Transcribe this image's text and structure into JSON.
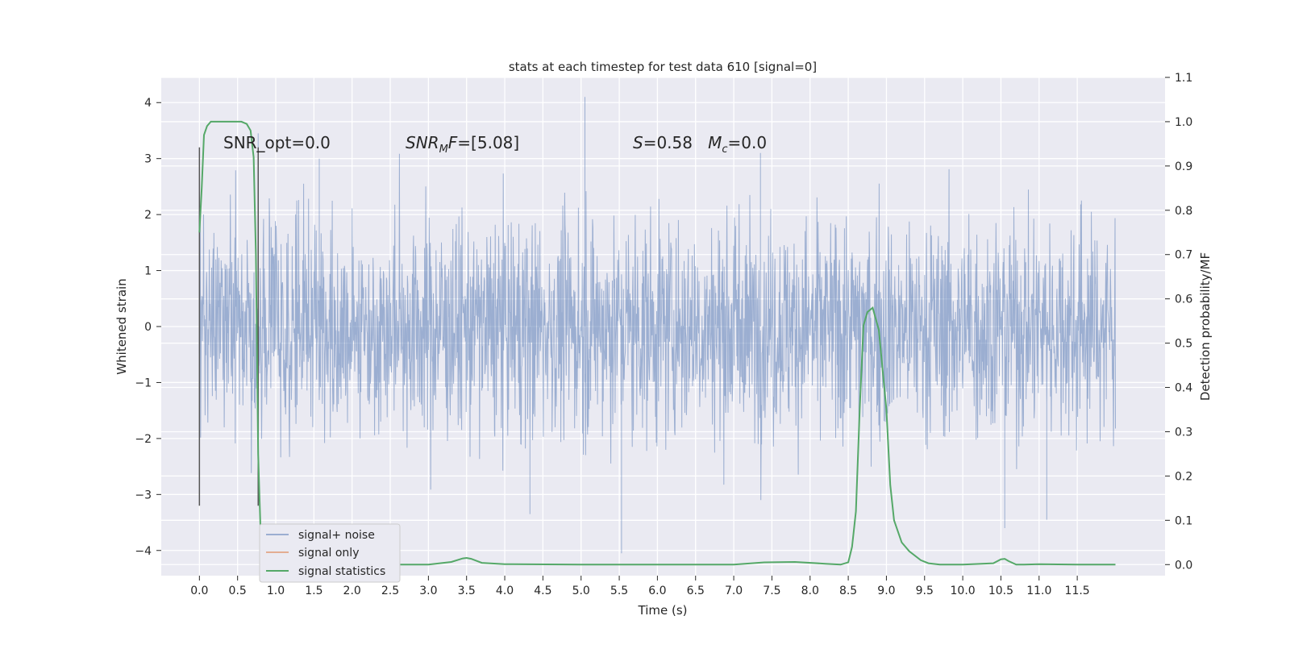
{
  "chart_data": {
    "type": "line",
    "title": "stats at each timestep for test data 610 [signal=0]",
    "xlabel": "Time (s)",
    "ylabel_left": "Whitened strain",
    "ylabel_right": "Detection probability/MF",
    "xlim": [
      -0.5,
      12.65
    ],
    "ylim_left": [
      -4.45,
      4.45
    ],
    "ylim_right": [
      -0.025,
      1.1
    ],
    "x_ticks": [
      0.0,
      0.5,
      1.0,
      1.5,
      2.0,
      2.5,
      3.0,
      3.5,
      4.0,
      4.5,
      5.0,
      5.5,
      6.0,
      6.5,
      7.0,
      7.5,
      8.0,
      8.5,
      9.0,
      9.5,
      10.0,
      10.5,
      11.0,
      11.5
    ],
    "x_tick_labels": [
      "0.0",
      "0.5",
      "1.0",
      "1.5",
      "2.0",
      "2.5",
      "3.0",
      "3.5",
      "4.0",
      "4.5",
      "5.0",
      "5.5",
      "6.0",
      "6.5",
      "7.0",
      "7.5",
      "8.0",
      "8.5",
      "9.0",
      "9.5",
      "10.0",
      "10.5",
      "11.0",
      "11.5"
    ],
    "y_left_ticks": [
      4,
      3,
      2,
      1,
      0,
      -1,
      -2,
      -3,
      -4
    ],
    "y_left_tick_labels": [
      "4",
      "3",
      "2",
      "1",
      "0",
      "−1",
      "−2",
      "−3",
      "−4"
    ],
    "y_right_ticks": [
      1.1,
      1.0,
      0.9,
      0.8,
      0.7,
      0.6,
      0.5,
      0.4,
      0.3,
      0.2,
      0.1,
      0.0
    ],
    "y_right_tick_labels": [
      "1.1",
      "1.0",
      "0.9",
      "0.8",
      "0.7",
      "0.6",
      "0.5",
      "0.4",
      "0.3",
      "0.2",
      "0.1",
      "0.0"
    ],
    "grid": true,
    "legend_position": "lower-left",
    "series": [
      {
        "name": "signal+ noise",
        "axis": "left",
        "color": "#4c72b0",
        "x_range": [
          0.0,
          12.0
        ],
        "typical_amplitude": 1.3,
        "spikes": [
          {
            "x": 5.05,
            "y": 4.1
          },
          {
            "x": 5.53,
            "y": -4.05
          },
          {
            "x": 10.55,
            "y": -3.6
          },
          {
            "x": 11.1,
            "y": -3.45
          },
          {
            "x": 4.33,
            "y": -3.35
          },
          {
            "x": 1.57,
            "y": 3.0
          },
          {
            "x": 7.35,
            "y": 3.1
          },
          {
            "x": 0.77,
            "y": 3.45
          }
        ]
      },
      {
        "name": "signal only",
        "axis": "left",
        "color": "#dd8452",
        "x": [],
        "y": []
      },
      {
        "name": "signal statistics",
        "axis": "right",
        "color": "#55a868",
        "x": [
          0.0,
          0.03,
          0.06,
          0.1,
          0.15,
          0.2,
          0.3,
          0.4,
          0.5,
          0.55,
          0.62,
          0.67,
          0.71,
          0.74,
          0.77,
          0.8,
          0.84,
          0.88,
          0.95,
          1.1,
          1.3,
          1.45,
          1.52,
          1.57,
          1.62,
          1.67,
          1.75,
          2.0,
          2.5,
          3.0,
          3.3,
          3.45,
          3.5,
          3.56,
          3.7,
          4.0,
          5.0,
          6.0,
          7.0,
          7.4,
          7.8,
          8.2,
          8.4,
          8.5,
          8.55,
          8.6,
          8.65,
          8.7,
          8.75,
          8.82,
          8.9,
          9.0,
          9.05,
          9.1,
          9.2,
          9.3,
          9.45,
          9.55,
          9.7,
          10.0,
          10.4,
          10.5,
          10.55,
          10.6,
          10.7,
          10.8,
          11.0,
          11.5,
          12.0
        ],
        "y": [
          0.75,
          0.85,
          0.97,
          0.99,
          1.0,
          1.0,
          1.0,
          1.0,
          1.0,
          1.0,
          0.995,
          0.98,
          0.92,
          0.7,
          0.25,
          0.08,
          0.02,
          0.005,
          0.0,
          0.0,
          0.0,
          0.008,
          0.022,
          0.02,
          0.015,
          0.005,
          0.0,
          0.0,
          0.0,
          0.0,
          0.006,
          0.014,
          0.015,
          0.013,
          0.004,
          0.001,
          0.0,
          0.0,
          0.0,
          0.005,
          0.006,
          0.002,
          0.0,
          0.005,
          0.04,
          0.12,
          0.35,
          0.54,
          0.57,
          0.58,
          0.53,
          0.35,
          0.18,
          0.1,
          0.05,
          0.03,
          0.01,
          0.003,
          0.0,
          0.0,
          0.003,
          0.012,
          0.013,
          0.008,
          0.0,
          0.0,
          0.001,
          0.0,
          0.0
        ]
      }
    ],
    "vertical_lines": [
      {
        "x": 0.0,
        "y_range": [
          -3.2,
          3.2
        ],
        "color": "#555555"
      },
      {
        "x": 0.77,
        "y_range": [
          -3.2,
          3.2
        ],
        "color": "#555555"
      }
    ],
    "annotations": [
      {
        "text": "SNR_opt=0.0",
        "x": 0.2,
        "y": 3.25
      },
      {
        "text_parts": [
          {
            "t": "SNR",
            "italic": true
          },
          {
            "t": "M",
            "italic": true,
            "sub": true
          },
          {
            "t": "F",
            "italic": true
          },
          {
            "t": "=[5.08]",
            "italic": false
          }
        ],
        "x": 2.6,
        "y": 3.25
      },
      {
        "text_parts": [
          {
            "t": "S",
            "italic": true
          },
          {
            "t": "=0.58   ",
            "italic": false
          },
          {
            "t": "M",
            "italic": true
          },
          {
            "t": "c",
            "italic": true,
            "sub": true
          },
          {
            "t": "=0.0",
            "italic": false
          }
        ],
        "x": 5.6,
        "y": 3.25
      }
    ]
  }
}
